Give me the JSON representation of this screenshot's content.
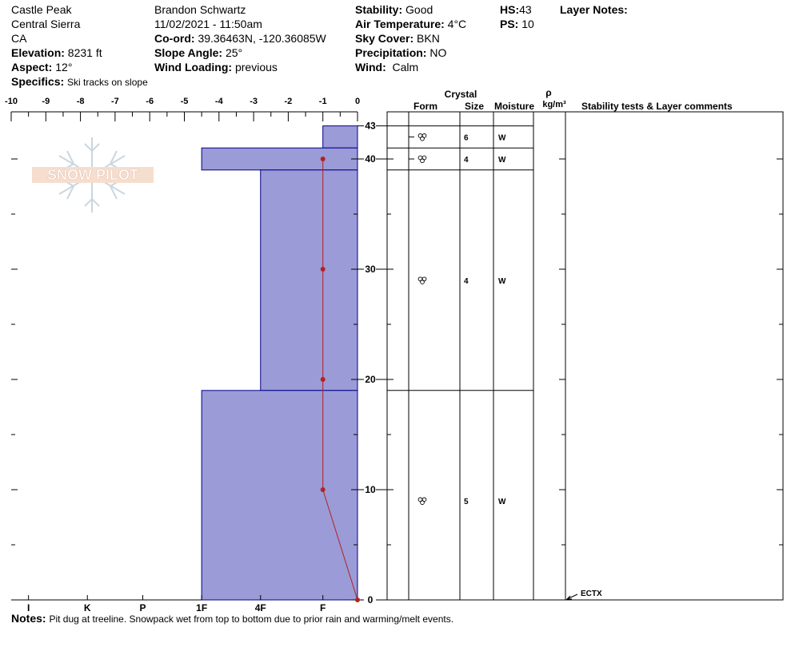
{
  "header": {
    "location": "Castle Peak",
    "range": "Central Sierra",
    "state": "CA",
    "elevation_label": "Elevation:",
    "elevation": "8231 ft",
    "aspect_label": "Aspect:",
    "aspect": "12°",
    "specifics_label": "Specifics:",
    "specifics": "Ski tracks on slope",
    "observer": "Brandon Schwartz",
    "datetime": "11/02/2021 - 11:50am",
    "coord_label": "Co-ord:",
    "coord": "39.36463N, -120.36085W",
    "slope_label": "Slope Angle:",
    "slope": "25°",
    "wind_loading_label": "Wind Loading:",
    "wind_loading": "previous",
    "stability_label": "Stability:",
    "stability": "Good",
    "air_temp_label": "Air Temperature:",
    "air_temp": "4°C",
    "sky_label": "Sky Cover:",
    "sky": "BKN",
    "precip_label": "Precipitation:",
    "precip": "NO",
    "wind_label": "Wind:",
    "wind": "Calm",
    "hs_label": "HS:",
    "hs": "43",
    "ps_label": "PS:",
    "ps": "10",
    "layer_notes_label": "Layer Notes:"
  },
  "notes_label": "Notes:",
  "notes": "Pit dug at treeline. Snowpack wet from top to bottom due to prior rain and warming/melt events.",
  "logo_text": "SNOW PILOT",
  "table_headers": {
    "crystal": "Crystal",
    "form": "Form",
    "size": "Size",
    "moisture": "Moisture",
    "rho": "ρ",
    "density": "kg/m³",
    "comments": "Stability tests & Layer comments"
  },
  "colors": {
    "hardness_fill": "#9b9bd7",
    "hardness_stroke": "#00008b",
    "temperature_line": "#b22222"
  },
  "chart_data": {
    "type": "snow-profile",
    "temp_axis": {
      "ticks": [
        "-10",
        "-9",
        "-8",
        "-7",
        "-6",
        "-5",
        "-4",
        "-3",
        "-2",
        "-1",
        "0"
      ],
      "range": [
        -10,
        0
      ]
    },
    "hardness_axis": {
      "ticks": [
        "I",
        "K",
        "P",
        "1F",
        "4F",
        "F"
      ]
    },
    "depth_axis": {
      "ticks": [
        "43",
        "40",
        "30",
        "20",
        "10",
        "0"
      ],
      "range": [
        0,
        43
      ]
    },
    "layers": [
      {
        "top": 43,
        "bottom": 41,
        "hardness": 1,
        "form": "melt-form",
        "size": "6",
        "moisture": "W"
      },
      {
        "top": 41,
        "bottom": 39,
        "hardness": 4.5,
        "form": "melt-form",
        "size": "4",
        "moisture": "W"
      },
      {
        "top": 39,
        "bottom": 19,
        "hardness": 2.8,
        "form": "melt-form",
        "size": "4",
        "moisture": "W"
      },
      {
        "top": 19,
        "bottom": 0,
        "hardness": 4.5,
        "form": "melt-form",
        "size": "5",
        "moisture": "W"
      }
    ],
    "temperature_profile": [
      {
        "depth": 40,
        "temp": -1
      },
      {
        "depth": 30,
        "temp": -1
      },
      {
        "depth": 20,
        "temp": -1
      },
      {
        "depth": 10,
        "temp": -1
      },
      {
        "depth": 0,
        "temp": 0
      }
    ],
    "stability_tests": [
      {
        "depth": 0,
        "label": "ECTX"
      }
    ]
  }
}
